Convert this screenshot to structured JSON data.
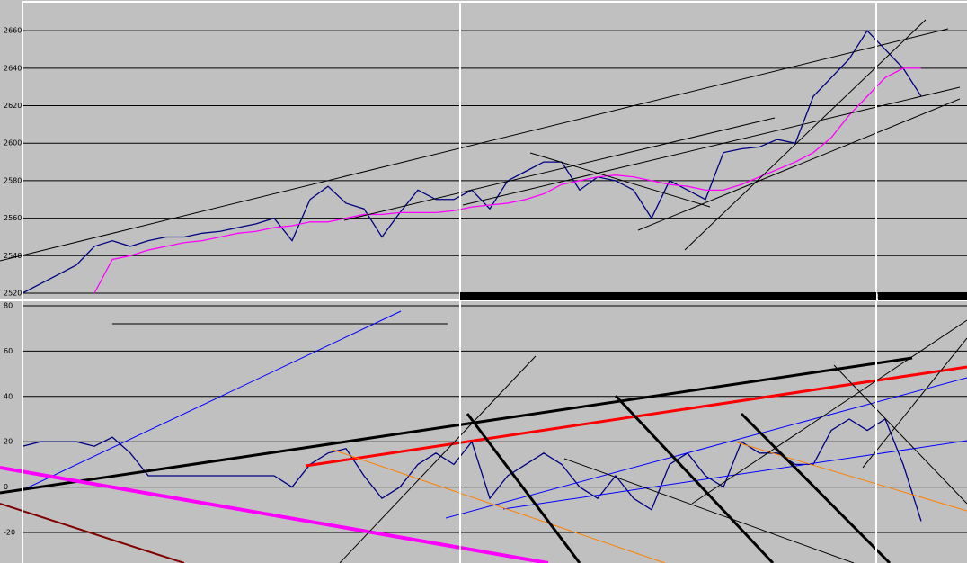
{
  "chart_data": [
    {
      "type": "line",
      "ylim": [
        2520,
        2674
      ],
      "yticks": [
        2520,
        2540,
        2560,
        2580,
        2600,
        2620,
        2640,
        2660
      ],
      "grid": true,
      "series": [
        {
          "color": "#000080",
          "values": [
            2520,
            2525,
            2530,
            2535,
            2545,
            2548,
            2545,
            2548,
            2550,
            2550,
            2552,
            2553,
            2555,
            2557,
            2560,
            2548,
            2570,
            2577,
            2568,
            2565,
            2550,
            2563,
            2575,
            2570,
            2570,
            2575,
            2565,
            2580,
            2585,
            2590,
            2590,
            2575,
            2582,
            2580,
            2575,
            2560,
            2580,
            2575,
            2570,
            2595,
            2597,
            2598,
            2602,
            2600,
            2625,
            2635,
            2645,
            2660,
            2650,
            2640,
            2625
          ]
        },
        {
          "color": "#ff00ff",
          "values": [
            null,
            null,
            null,
            null,
            2520,
            2538,
            2540,
            2543,
            2545,
            2547,
            2548,
            2550,
            2552,
            2553,
            2555,
            2556,
            2558,
            2558,
            2560,
            2562,
            2562,
            2563,
            2563,
            2563,
            2564,
            2566,
            2567,
            2568,
            2570,
            2573,
            2578,
            2580,
            2582,
            2583,
            2582,
            2580,
            2578,
            2577,
            2575,
            2575,
            2578,
            2582,
            2586,
            2590,
            2595,
            2603,
            2615,
            2625,
            2635,
            2640,
            2640
          ]
        }
      ]
    },
    {
      "type": "line",
      "ylim": [
        -33.5,
        80.8
      ],
      "yticks": [
        -20,
        0,
        20,
        40,
        60,
        80
      ],
      "grid": true,
      "series": [
        {
          "color": "#000080",
          "values": [
            18,
            20,
            20,
            20,
            18,
            22,
            15,
            5,
            5,
            5,
            5,
            5,
            5,
            5,
            5,
            0,
            10,
            15,
            17,
            5,
            -5,
            0,
            10,
            15,
            10,
            20,
            -5,
            5,
            10,
            15,
            10,
            0,
            -5,
            5,
            -5,
            -10,
            10,
            15,
            5,
            0,
            20,
            15,
            15,
            10,
            10,
            25,
            30,
            25,
            30,
            10,
            -15
          ]
        }
      ]
    }
  ]
}
